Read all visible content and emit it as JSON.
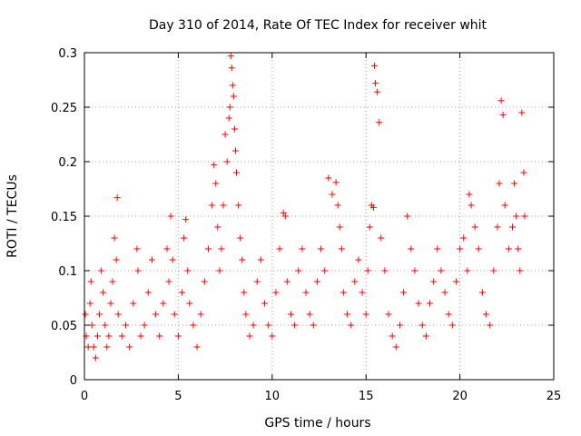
{
  "chart_data": {
    "type": "scatter",
    "title": "Day 310 of 2014, Rate Of TEC Index for receiver whit",
    "xlabel": "GPS time / hours",
    "ylabel": "ROTI / TECUs",
    "xlim": [
      0,
      25
    ],
    "ylim": [
      0,
      0.3
    ],
    "xticks": [
      0,
      5,
      10,
      15,
      20,
      25
    ],
    "yticks": [
      0,
      0.05,
      0.1,
      0.15,
      0.2,
      0.25,
      0.3
    ],
    "xtick_labels": [
      "0",
      "5",
      "10",
      "15",
      "20",
      "25"
    ],
    "ytick_labels": [
      "0",
      "0.05",
      "0.1",
      "0.15",
      "0.2",
      "0.25",
      "0.3"
    ],
    "grid": true,
    "marker": "+",
    "color": "#ff0000",
    "series": [
      {
        "x": [
          0.05,
          0.1,
          0.2,
          0.3,
          0.35,
          0.4,
          0.5,
          0.6,
          0.7,
          0.8,
          0.9,
          1.0,
          1.1,
          1.2,
          1.3,
          1.4,
          1.5,
          1.6,
          1.7,
          1.75,
          1.8,
          2.0,
          2.2,
          2.4,
          2.6,
          2.8,
          2.85,
          3.0,
          3.2,
          3.4,
          3.6,
          3.8,
          4.0,
          4.2,
          4.4,
          4.5,
          4.6,
          4.7,
          4.8,
          5.0,
          5.2,
          5.3,
          5.4,
          5.5,
          5.6,
          5.8,
          6.0,
          6.2,
          6.4,
          6.6,
          6.8,
          6.9,
          7.0,
          7.1,
          7.2,
          7.3,
          7.4,
          7.5,
          7.6,
          7.7,
          7.75,
          7.8,
          7.85,
          7.9,
          7.95,
          8.0,
          8.05,
          8.1,
          8.2,
          8.3,
          8.4,
          8.5,
          8.6,
          8.8,
          9.0,
          9.2,
          9.4,
          9.6,
          9.8,
          10.0,
          10.2,
          10.4,
          10.6,
          10.7,
          10.8,
          11.0,
          11.2,
          11.4,
          11.6,
          11.8,
          12.0,
          12.2,
          12.4,
          12.6,
          12.8,
          13.0,
          13.2,
          13.4,
          13.5,
          13.6,
          13.7,
          13.8,
          14.0,
          14.2,
          14.4,
          14.6,
          14.8,
          15.0,
          15.1,
          15.2,
          15.3,
          15.4,
          15.45,
          15.5,
          15.6,
          15.7,
          15.8,
          16.0,
          16.2,
          16.4,
          16.6,
          16.8,
          17.0,
          17.2,
          17.4,
          17.6,
          17.8,
          18.0,
          18.2,
          18.4,
          18.6,
          18.8,
          19.0,
          19.2,
          19.4,
          19.6,
          19.8,
          20.0,
          20.2,
          20.4,
          20.5,
          20.6,
          20.8,
          21.0,
          21.2,
          21.4,
          21.6,
          21.8,
          22.0,
          22.1,
          22.2,
          22.3,
          22.4,
          22.6,
          22.8,
          22.9,
          23.0,
          23.1,
          23.2,
          23.3,
          23.4,
          23.45
        ],
        "y": [
          0.06,
          0.04,
          0.03,
          0.07,
          0.09,
          0.05,
          0.03,
          0.02,
          0.04,
          0.06,
          0.1,
          0.08,
          0.05,
          0.03,
          0.04,
          0.07,
          0.09,
          0.13,
          0.11,
          0.167,
          0.06,
          0.04,
          0.05,
          0.03,
          0.07,
          0.12,
          0.1,
          0.04,
          0.05,
          0.08,
          0.11,
          0.06,
          0.04,
          0.07,
          0.12,
          0.09,
          0.15,
          0.11,
          0.06,
          0.04,
          0.08,
          0.13,
          0.147,
          0.1,
          0.07,
          0.05,
          0.03,
          0.06,
          0.09,
          0.12,
          0.16,
          0.197,
          0.18,
          0.14,
          0.1,
          0.12,
          0.16,
          0.225,
          0.2,
          0.24,
          0.25,
          0.297,
          0.286,
          0.27,
          0.26,
          0.23,
          0.21,
          0.19,
          0.16,
          0.13,
          0.11,
          0.08,
          0.06,
          0.04,
          0.05,
          0.09,
          0.11,
          0.07,
          0.05,
          0.04,
          0.08,
          0.12,
          0.153,
          0.15,
          0.09,
          0.06,
          0.05,
          0.1,
          0.12,
          0.08,
          0.06,
          0.05,
          0.09,
          0.12,
          0.1,
          0.185,
          0.17,
          0.181,
          0.16,
          0.14,
          0.12,
          0.08,
          0.06,
          0.05,
          0.09,
          0.11,
          0.08,
          0.06,
          0.1,
          0.14,
          0.16,
          0.158,
          0.288,
          0.272,
          0.264,
          0.236,
          0.13,
          0.1,
          0.06,
          0.04,
          0.03,
          0.05,
          0.08,
          0.15,
          0.12,
          0.1,
          0.07,
          0.05,
          0.04,
          0.07,
          0.09,
          0.12,
          0.1,
          0.08,
          0.06,
          0.05,
          0.09,
          0.12,
          0.13,
          0.1,
          0.17,
          0.16,
          0.14,
          0.12,
          0.08,
          0.06,
          0.05,
          0.1,
          0.14,
          0.18,
          0.256,
          0.243,
          0.16,
          0.12,
          0.14,
          0.18,
          0.15,
          0.12,
          0.1,
          0.245,
          0.19,
          0.15
        ]
      }
    ]
  }
}
